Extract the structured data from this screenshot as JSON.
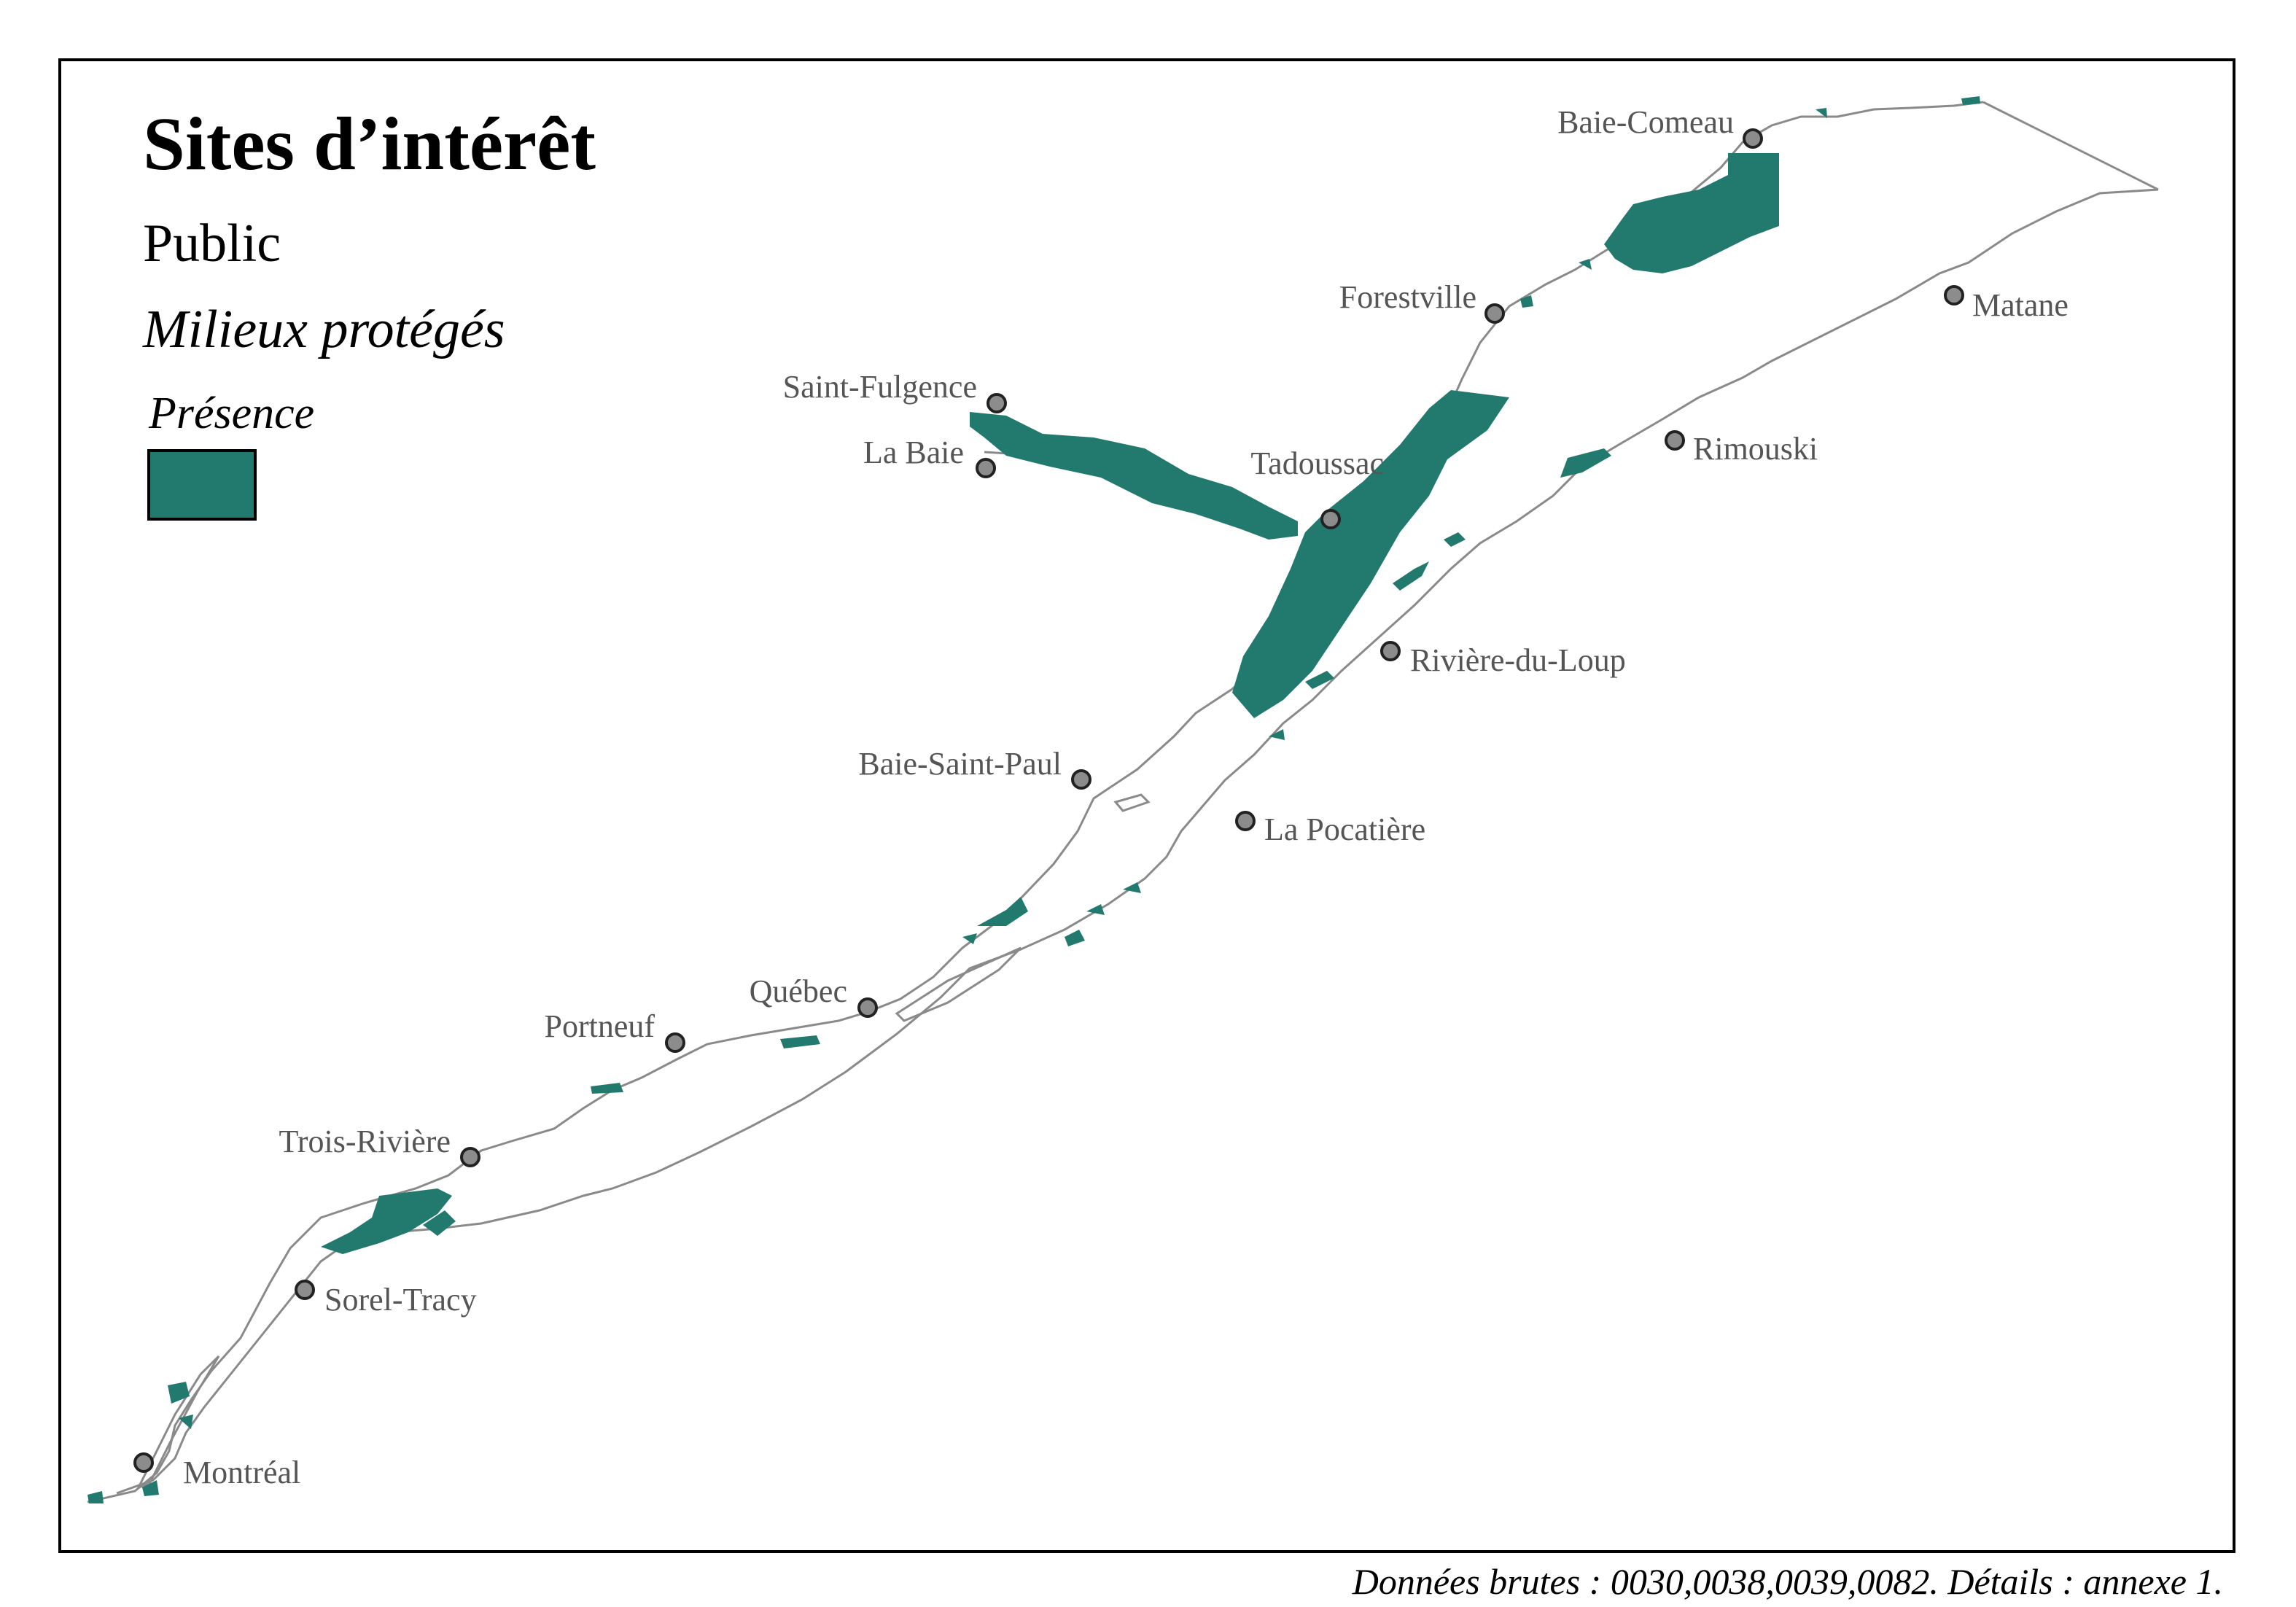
{
  "legend": {
    "title": "Sites d’intérêt",
    "subtitle": "Public",
    "layer": "Milieux protégés",
    "heading": "Présence",
    "swatch_label": "",
    "swatch_color": "#227a6f"
  },
  "colors": {
    "protected": "#227a6f",
    "protected_dark": "#0f5c50",
    "shoreline": "#8a8a8a",
    "city_fill": "#8c8c8c",
    "city_stroke": "#222222",
    "label": "#555555"
  },
  "cities": [
    {
      "name": "Baie-Comeau"
    },
    {
      "name": "Forestville"
    },
    {
      "name": "Matane"
    },
    {
      "name": "Saint-Fulgence"
    },
    {
      "name": "La Baie"
    },
    {
      "name": "Tadoussac"
    },
    {
      "name": "Rimouski"
    },
    {
      "name": "Rivière-du-Loup"
    },
    {
      "name": "Baie-Saint-Paul"
    },
    {
      "name": "La Pocatière"
    },
    {
      "name": "Québec"
    },
    {
      "name": "Portneuf"
    },
    {
      "name": "Trois-Rivière"
    },
    {
      "name": "Sorel-Tracy"
    },
    {
      "name": "Montréal"
    }
  ],
  "source_note": "Données brutes : 0030,0038,0039,0082. Détails : annexe 1."
}
